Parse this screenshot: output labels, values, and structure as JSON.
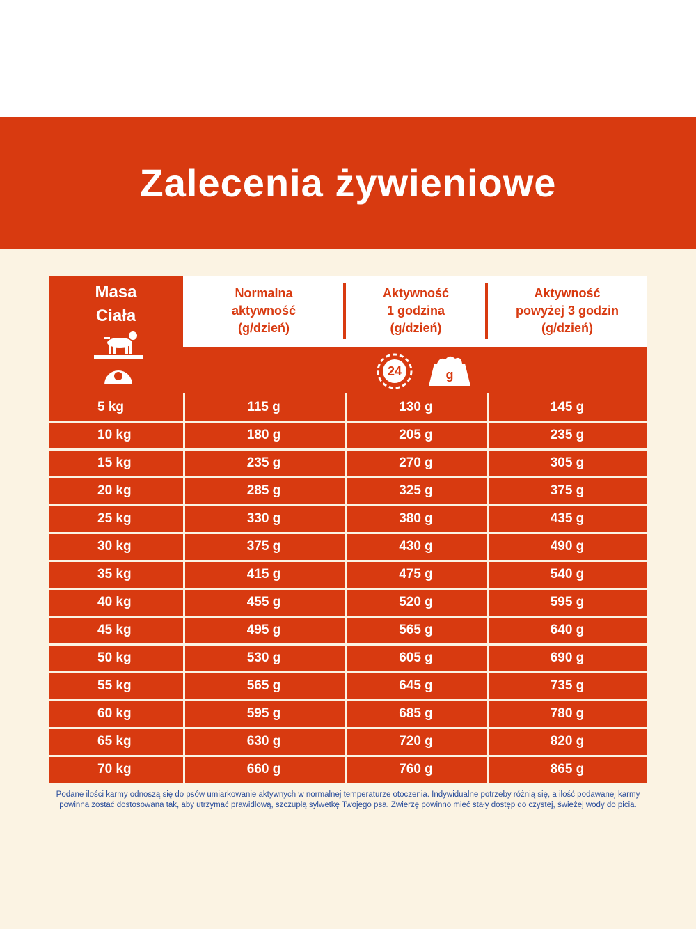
{
  "header": {
    "title": "Zalecenia żywieniowe"
  },
  "table": {
    "corner": [
      "Masa",
      "Ciała"
    ],
    "columns": [
      [
        "Normalna",
        "aktywność",
        "(g/dzień)"
      ],
      [
        "Aktywność",
        "1 godzina",
        "(g/dzień)"
      ],
      [
        "Aktywność",
        "powyżej 3 godzin",
        "(g/dzień)"
      ]
    ],
    "icons": {
      "clock": "24",
      "bowl": "g"
    },
    "rows": [
      [
        "5 kg",
        "115 g",
        "130 g",
        "145 g"
      ],
      [
        "10 kg",
        "180 g",
        "205 g",
        "235 g"
      ],
      [
        "15 kg",
        "235 g",
        "270 g",
        "305 g"
      ],
      [
        "20 kg",
        "285 g",
        "325 g",
        "375 g"
      ],
      [
        "25 kg",
        "330 g",
        "380 g",
        "435 g"
      ],
      [
        "30 kg",
        "375 g",
        "430 g",
        "490 g"
      ],
      [
        "35 kg",
        "415 g",
        "475 g",
        "540 g"
      ],
      [
        "40 kg",
        "455 g",
        "520 g",
        "595 g"
      ],
      [
        "45 kg",
        "495 g",
        "565 g",
        "640 g"
      ],
      [
        "50 kg",
        "530 g",
        "605 g",
        "690 g"
      ],
      [
        "55 kg",
        "565 g",
        "645 g",
        "735 g"
      ],
      [
        "60 kg",
        "595 g",
        "685 g",
        "780 g"
      ],
      [
        "65 kg",
        "630 g",
        "720 g",
        "820 g"
      ],
      [
        "70 kg",
        "660 g",
        "760 g",
        "865 g"
      ]
    ]
  },
  "footnote": [
    "Podane ilości karmy odnoszą się do psów umiarkowanie aktywnych w normalnej temperaturze otoczenia. Indywidualne potrzeby różnią się, a ilość podawanej karmy",
    "powinna zostać dostosowana tak, aby utrzymać prawidłową, szczupłą sylwetkę Twojego psa. Zwierzę powinno mieć stały dostęp do czystej, świeżej wody do picia."
  ]
}
